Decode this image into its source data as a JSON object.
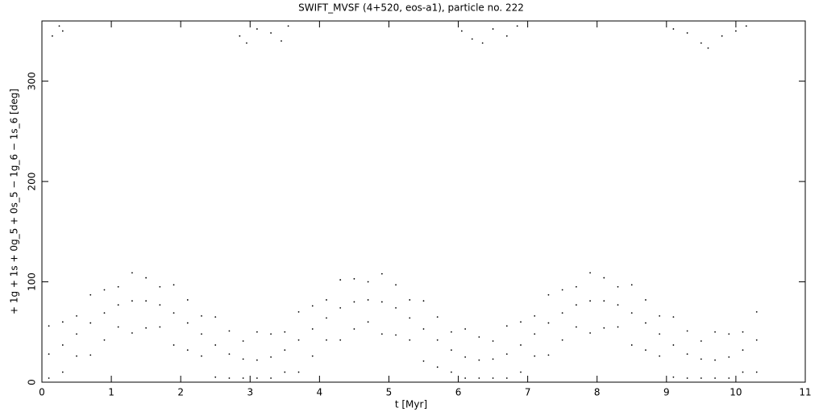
{
  "chart_data": {
    "type": "scatter",
    "title": "SWIFT_MVSF (4+520, eos-a1), particle no. 222",
    "x_label": "t [Myr]",
    "y_label": "+ 1g + 1s + 0g_5 + 0s_5 − 1g_6 − 1s_6 [deg]",
    "xlim": [
      0,
      11
    ],
    "ylim": [
      0,
      360
    ],
    "xticks": [
      0,
      1,
      2,
      3,
      4,
      5,
      6,
      7,
      8,
      9,
      10,
      11
    ],
    "yticks": [
      0,
      100,
      200,
      300
    ],
    "color": "#000000",
    "x": [
      0.1,
      0.1,
      0.1,
      0.3,
      0.3,
      0.3,
      0.5,
      0.5,
      0.5,
      0.7,
      0.7,
      0.7,
      0.9,
      0.9,
      0.9,
      1.1,
      1.1,
      1.1,
      1.3,
      1.3,
      1.3,
      1.5,
      1.5,
      1.5,
      1.7,
      1.7,
      1.7,
      1.9,
      1.9,
      1.9,
      2.1,
      2.1,
      2.1,
      2.3,
      2.3,
      2.3,
      2.5,
      2.5,
      2.5,
      2.7,
      2.7,
      2.7,
      2.9,
      2.9,
      2.9,
      3.1,
      3.1,
      3.1,
      3.3,
      3.3,
      3.3,
      3.5,
      3.5,
      3.5,
      3.7,
      3.7,
      3.7,
      3.9,
      3.9,
      3.9,
      4.1,
      4.1,
      4.1,
      4.3,
      4.3,
      4.3,
      4.5,
      4.5,
      4.5,
      4.7,
      4.7,
      4.7,
      4.9,
      4.9,
      4.9,
      5.1,
      5.1,
      5.1,
      5.3,
      5.3,
      5.3,
      5.5,
      5.5,
      5.5,
      5.7,
      5.7,
      5.7,
      5.9,
      5.9,
      5.9,
      6.1,
      6.1,
      6.1,
      6.3,
      6.3,
      6.3,
      6.5,
      6.5,
      6.5,
      6.7,
      6.7,
      6.7,
      6.9,
      6.9,
      6.9,
      7.1,
      7.1,
      7.1,
      7.3,
      7.3,
      7.3,
      7.5,
      7.5,
      7.5,
      7.7,
      7.7,
      7.7,
      7.9,
      7.9,
      7.9,
      8.1,
      8.1,
      8.1,
      8.3,
      8.3,
      8.3,
      8.5,
      8.5,
      8.5,
      8.7,
      8.7,
      8.7,
      8.9,
      8.9,
      8.9,
      9.1,
      9.1,
      9.1,
      9.3,
      9.3,
      9.3,
      9.5,
      9.5,
      9.5,
      9.7,
      9.7,
      9.7,
      9.9,
      9.9,
      9.9,
      10.1,
      10.1,
      10.1,
      10.3,
      10.3,
      10.3,
      0.15,
      0.25,
      0.3,
      2.85,
      2.95,
      3.1,
      3.3,
      3.45,
      3.55,
      6.05,
      6.2,
      6.35,
      6.5,
      6.7,
      6.85,
      9.1,
      9.3,
      9.5,
      9.6,
      9.8,
      10.0,
      10.15
    ],
    "y": [
      4,
      28,
      56,
      10,
      37,
      60,
      26,
      48,
      66,
      27,
      59,
      87,
      42,
      69,
      92,
      55,
      77,
      95,
      49,
      81,
      109,
      54,
      81,
      104,
      55,
      77,
      95,
      37,
      69,
      97,
      32,
      59,
      82,
      26,
      48,
      66,
      5,
      37,
      65,
      4,
      28,
      51,
      4,
      23,
      41,
      4,
      22,
      50,
      4,
      25,
      48,
      10,
      32,
      50,
      10,
      42,
      70,
      26,
      53,
      76,
      42,
      64,
      82,
      42,
      74,
      102,
      53,
      80,
      103,
      60,
      82,
      100,
      48,
      80,
      108,
      47,
      74,
      97,
      42,
      64,
      82,
      21,
      53,
      81,
      15,
      42,
      65,
      10,
      32,
      50,
      4,
      25,
      53,
      4,
      22,
      45,
      4,
      23,
      41,
      4,
      28,
      56,
      10,
      37,
      60,
      26,
      48,
      66,
      27,
      59,
      87,
      42,
      69,
      92,
      55,
      77,
      95,
      49,
      81,
      109,
      54,
      81,
      104,
      55,
      77,
      95,
      37,
      69,
      97,
      32,
      59,
      82,
      26,
      48,
      66,
      5,
      37,
      65,
      4,
      28,
      51,
      4,
      23,
      41,
      4,
      22,
      50,
      4,
      25,
      48,
      10,
      32,
      50,
      10,
      42,
      70,
      345,
      355,
      350,
      345,
      338,
      352,
      348,
      340,
      355,
      350,
      342,
      338,
      352,
      345,
      355,
      352,
      348,
      338,
      333,
      345,
      350,
      355
    ]
  }
}
